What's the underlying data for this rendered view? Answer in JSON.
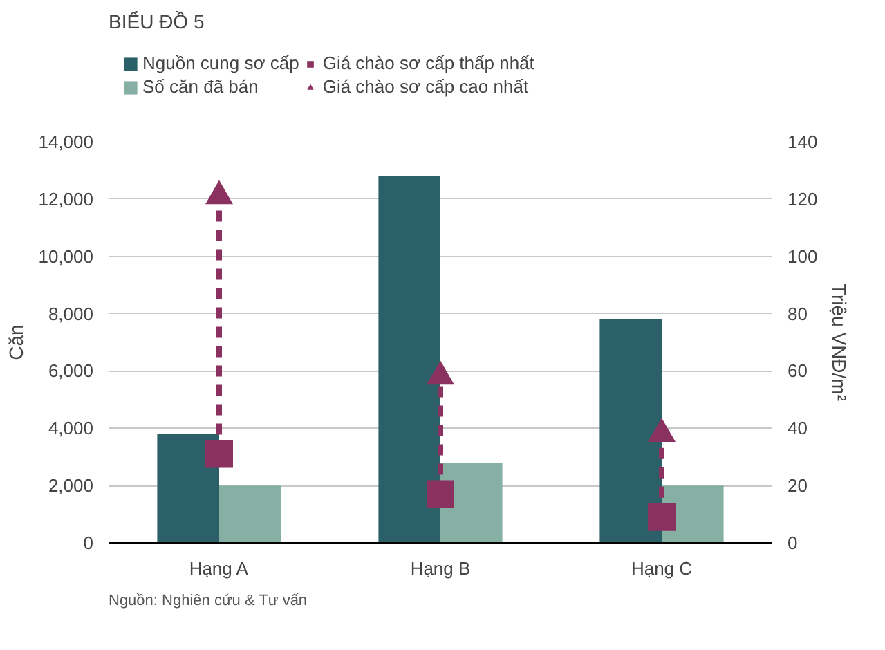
{
  "chart_data": {
    "type": "bar",
    "title": "BIỂU ĐỒ 5",
    "categories": [
      "Hạng A",
      "Hạng B",
      "Hạng C"
    ],
    "series": [
      {
        "name": "Nguồn cung sơ cấp",
        "color": "#2b6069",
        "values": [
          3800,
          12800,
          7800
        ]
      },
      {
        "name": "Số căn đã bán",
        "color": "#86b0a4",
        "values": [
          2000,
          2800,
          2000
        ]
      },
      {
        "name": "Giá chào sơ cấp thấp nhất",
        "color": "#8b3160",
        "type": "scatter",
        "marker": "square",
        "axis": "y2",
        "values": [
          31,
          17,
          9
        ]
      },
      {
        "name": "Giá chào sơ cấp cao nhất",
        "color": "#8b3160",
        "type": "scatter",
        "marker": "triangle",
        "line_style": "dashed",
        "axis": "y2",
        "values": [
          121,
          58,
          38
        ]
      }
    ],
    "ylabel": "Căn",
    "y2label": "Triệu VNĐ/m²",
    "ylim": [
      0,
      14000
    ],
    "yticks": [
      0,
      {
        "value": 2000,
        "label": "2,000"
      },
      {
        "value": 4000,
        "label": "4,000"
      },
      {
        "value": 6000,
        "label": "6,000"
      },
      {
        "value": 8000,
        "label": "8,000"
      },
      {
        "value": 10000,
        "label": "10,000"
      },
      {
        "value": 12000,
        "label": "12,000"
      },
      {
        "value": 14000,
        "label": "14,000"
      }
    ],
    "y2lim": [
      0,
      140
    ],
    "y2ticks": [
      0,
      20,
      40,
      60,
      80,
      100,
      120,
      140
    ],
    "grid": "y",
    "legend": "top",
    "annotations": [
      "Nguồn: Nghiên cứu & Tư vấn"
    ]
  }
}
